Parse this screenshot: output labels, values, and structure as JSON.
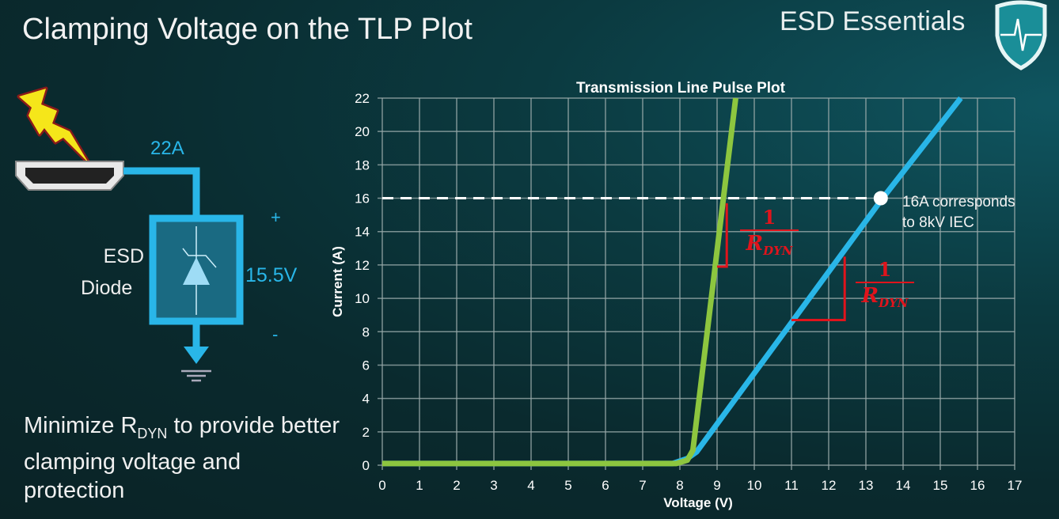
{
  "slide": {
    "title": "Clamping Voltage on the TLP Plot",
    "brand": "ESD Essentials",
    "bottom_text_before": "Minimize R",
    "bottom_text_sub": "DYN",
    "bottom_text_after": " to provide better clamping voltage and protection"
  },
  "diagram": {
    "current_label": "22A",
    "voltage_label": "15.5V",
    "plus": "+",
    "minus": "-",
    "device_line1": "ESD",
    "device_line2": "Diode",
    "colors": {
      "wire": "#29b6e8",
      "bolt": "#f5e61a"
    }
  },
  "chart_data": {
    "type": "line",
    "title": "Transmission Line Pulse Plot",
    "xlabel": "Voltage (V)",
    "ylabel": "Current (A)",
    "xlim": [
      0,
      17
    ],
    "ylim": [
      0,
      22
    ],
    "xticks": [
      0,
      1,
      2,
      3,
      4,
      5,
      6,
      7,
      8,
      9,
      10,
      11,
      12,
      13,
      14,
      15,
      16,
      17
    ],
    "yticks": [
      0,
      2,
      4,
      6,
      8,
      10,
      12,
      14,
      16,
      18,
      20,
      22
    ],
    "grid": true,
    "series": [
      {
        "color": "#29b6e8",
        "x": [
          0,
          7.8,
          8.2,
          8.45,
          13.45,
          15.55
        ],
        "y": [
          0.1,
          0.1,
          0.4,
          0.8,
          16,
          22
        ]
      },
      {
        "color": "#8dc63f",
        "x": [
          0,
          7.9,
          8.2,
          8.35,
          9.17,
          9.5
        ],
        "y": [
          0.1,
          0.1,
          0.3,
          0.9,
          16,
          22
        ]
      }
    ],
    "reference_line": {
      "y": 16,
      "x_end": 13.4,
      "color": "#ffffff",
      "style": "dashed"
    },
    "marker": {
      "x": 13.4,
      "y": 16,
      "color": "#ffffff"
    },
    "annotation": {
      "line1": "16A corresponds",
      "line2": "to 8kV IEC"
    },
    "slope_triangles": [
      {
        "x_from": 9.0,
        "x_corner": 9.26,
        "y_top": 15.7,
        "y_bottom": 11.9,
        "color": "#e0141c"
      },
      {
        "x_from": 11.0,
        "x_corner": 12.43,
        "y_top": 12.5,
        "y_bottom": 8.7,
        "color": "#e0141c"
      }
    ],
    "slope_label": {
      "numerator": "1",
      "denominator": "R",
      "subscript": "DYN"
    }
  }
}
